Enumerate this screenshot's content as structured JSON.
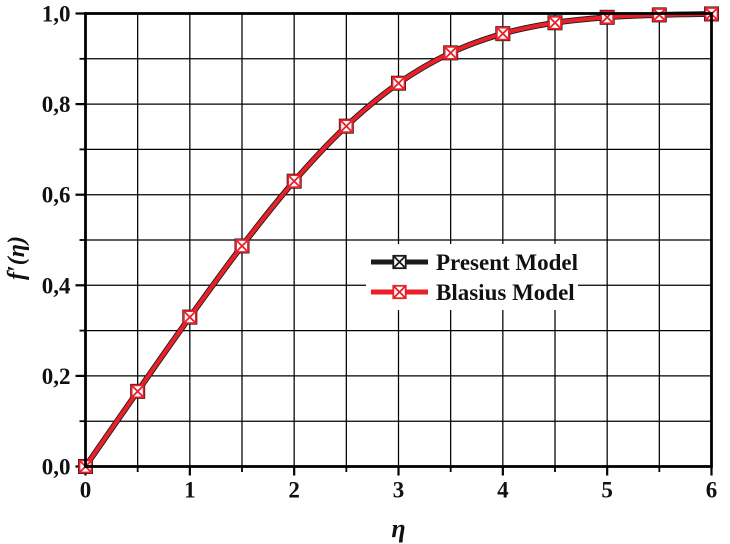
{
  "figure": {
    "background": "#ffffff",
    "axis_color": "#000000",
    "grid_color": "#000000",
    "text_color": "#111111"
  },
  "chart_data": {
    "type": "line",
    "title": "",
    "xlabel": "η",
    "ylabel": "f′(η)",
    "xlim": [
      0,
      6
    ],
    "ylim": [
      0,
      1
    ],
    "grid": "major and minor, solid black, on",
    "x_gridline_step": 0.5,
    "y_gridline_step": 0.1,
    "x_major_ticks": [
      0,
      1,
      2,
      3,
      4,
      5,
      6
    ],
    "x_tick_labels": [
      "0",
      "1",
      "2",
      "3",
      "4",
      "5",
      "6"
    ],
    "x_minor_ticks": [
      0.5,
      1.5,
      2.5,
      3.5,
      4.5,
      5.5
    ],
    "y_major_ticks": [
      0,
      0.2,
      0.4,
      0.6,
      0.8,
      1.0
    ],
    "y_tick_labels": [
      "0,0",
      "0,2",
      "0,4",
      "0,6",
      "0,8",
      "1,0"
    ],
    "y_minor_ticks": [
      0.1,
      0.3,
      0.5,
      0.7,
      0.9
    ],
    "legend_position": "inside center-right, white background, no border",
    "marker": "boxed-x",
    "x": [
      0,
      0.5,
      1,
      1.5,
      2,
      2.5,
      3,
      3.5,
      4,
      4.5,
      5,
      5.5,
      6
    ],
    "series": [
      {
        "name": "Present Model",
        "color": "#1a1a1a",
        "marker": "boxed-x",
        "values": [
          0,
          0.1659,
          0.3298,
          0.4868,
          0.6298,
          0.7513,
          0.8461,
          0.9131,
          0.9555,
          0.9795,
          0.9916,
          0.9969,
          0.999
        ]
      },
      {
        "name": "Blasius Model",
        "color": "#e8202a",
        "marker": "boxed-x",
        "values": [
          0,
          0.1659,
          0.3298,
          0.4868,
          0.6298,
          0.7513,
          0.8461,
          0.9131,
          0.9555,
          0.9795,
          0.9916,
          0.9969,
          0.999
        ]
      }
    ]
  }
}
